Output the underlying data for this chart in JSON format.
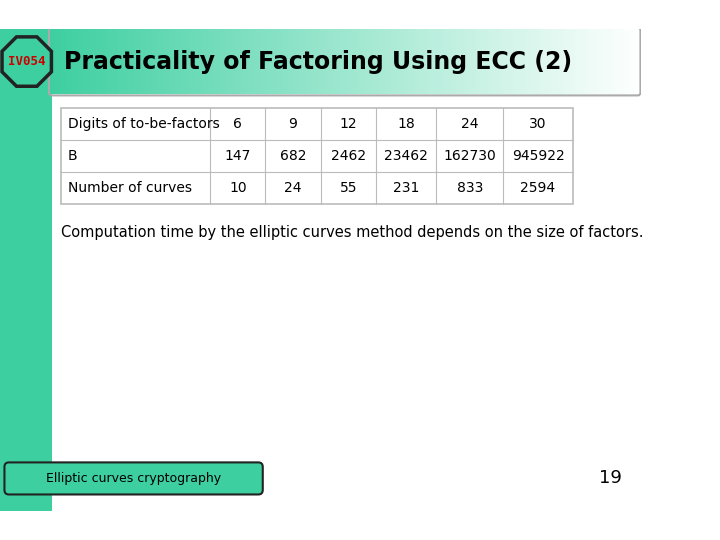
{
  "title": "Practicality of Factoring Using ECC (2)",
  "badge_text": "IV054",
  "table_headers": [
    "Digits of to-be-factors",
    "6",
    "9",
    "12",
    "18",
    "24",
    "30"
  ],
  "table_row1": [
    "B",
    "147",
    "682",
    "2462",
    "23462",
    "162730",
    "945922"
  ],
  "table_row2": [
    "Number of curves",
    "10",
    "24",
    "55",
    "231",
    "833",
    "2594"
  ],
  "body_text": "Computation time by the elliptic curves method depends on the size of factors.",
  "footer_text": "Elliptic curves cryptography",
  "page_number": "19",
  "bg_color": "#ffffff",
  "sidebar_color": "#3ecfa0",
  "badge_bg": "#3ecfa0",
  "badge_border": "#222222",
  "badge_text_color": "#cc0000",
  "title_color": "#000000",
  "table_border_color": "#bbbbbb",
  "footer_bg": "#3ecfa0",
  "footer_border": "#222222",
  "footer_text_color": "#000000",
  "page_num_color": "#000000",
  "header_green": "#3ecfa0",
  "header_white": "#ffffff"
}
